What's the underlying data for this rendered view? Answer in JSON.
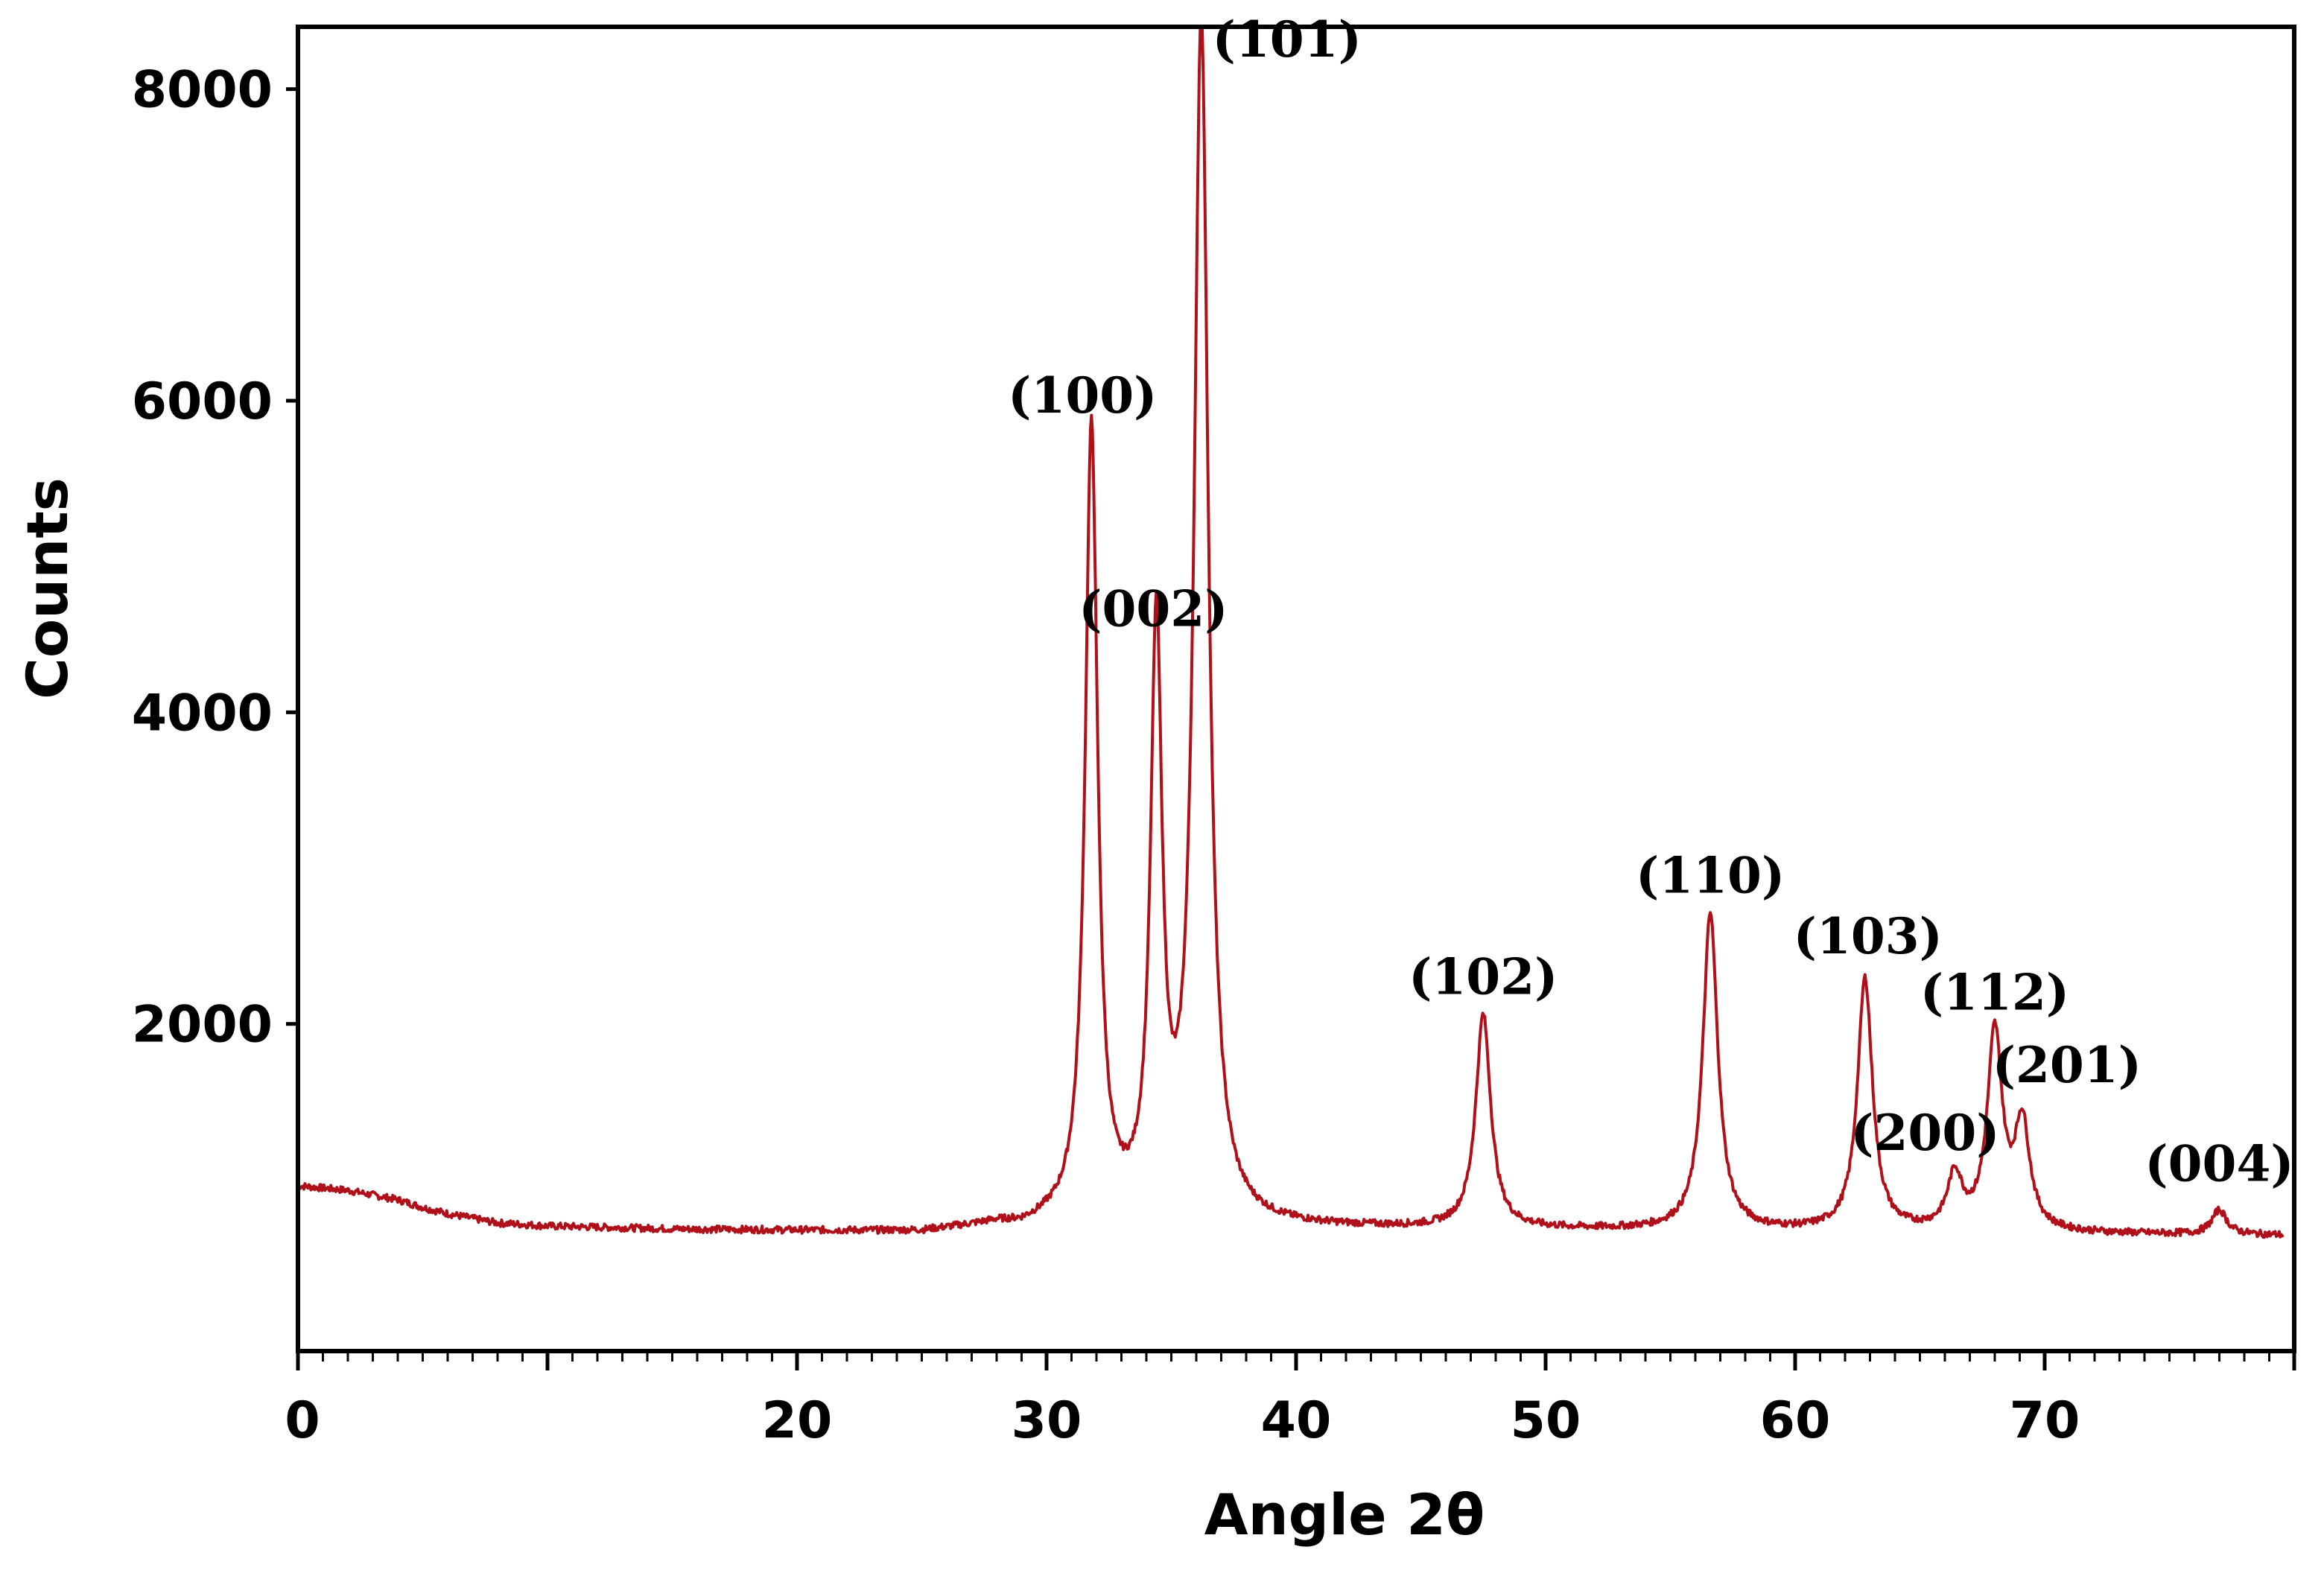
{
  "chart_data": {
    "type": "line",
    "title": "",
    "xlabel": "Angle 2θ",
    "ylabel": "Counts",
    "xlim": [
      0,
      80
    ],
    "ylim": [
      -100,
      8400
    ],
    "x_ticks": [
      0,
      20,
      30,
      40,
      50,
      60,
      70
    ],
    "y_ticks": [
      2000,
      4000,
      6000,
      8000
    ],
    "grid": false,
    "legend": "none",
    "line_color": "#b0101a",
    "background": [
      [
        0,
        960
      ],
      [
        2,
        930
      ],
      [
        4,
        870
      ],
      [
        5,
        820
      ],
      [
        6,
        780
      ],
      [
        8,
        720
      ],
      [
        10,
        700
      ],
      [
        15,
        680
      ],
      [
        20,
        670
      ],
      [
        25,
        660
      ],
      [
        28,
        700
      ],
      [
        29,
        680
      ],
      [
        30,
        700
      ],
      [
        80,
        640
      ]
    ],
    "peaks": [
      {
        "label": "(100)",
        "x": 31.8,
        "y": 5800
      },
      {
        "label": "(002)",
        "x": 34.4,
        "y": 4420
      },
      {
        "label": "(101)",
        "x": 36.2,
        "y": 8400
      },
      {
        "label": "(102)",
        "x": 47.5,
        "y": 2050
      },
      {
        "label": "(110)",
        "x": 56.6,
        "y": 2700
      },
      {
        "label": "(103)",
        "x": 62.8,
        "y": 2280
      },
      {
        "label": "(200)",
        "x": 66.4,
        "y": 1000
      },
      {
        "label": "(112)",
        "x": 68.0,
        "y": 1920
      },
      {
        "label": "(201)",
        "x": 69.1,
        "y": 1330
      },
      {
        "label": "(004)",
        "x": 77.0,
        "y": 800
      }
    ]
  }
}
